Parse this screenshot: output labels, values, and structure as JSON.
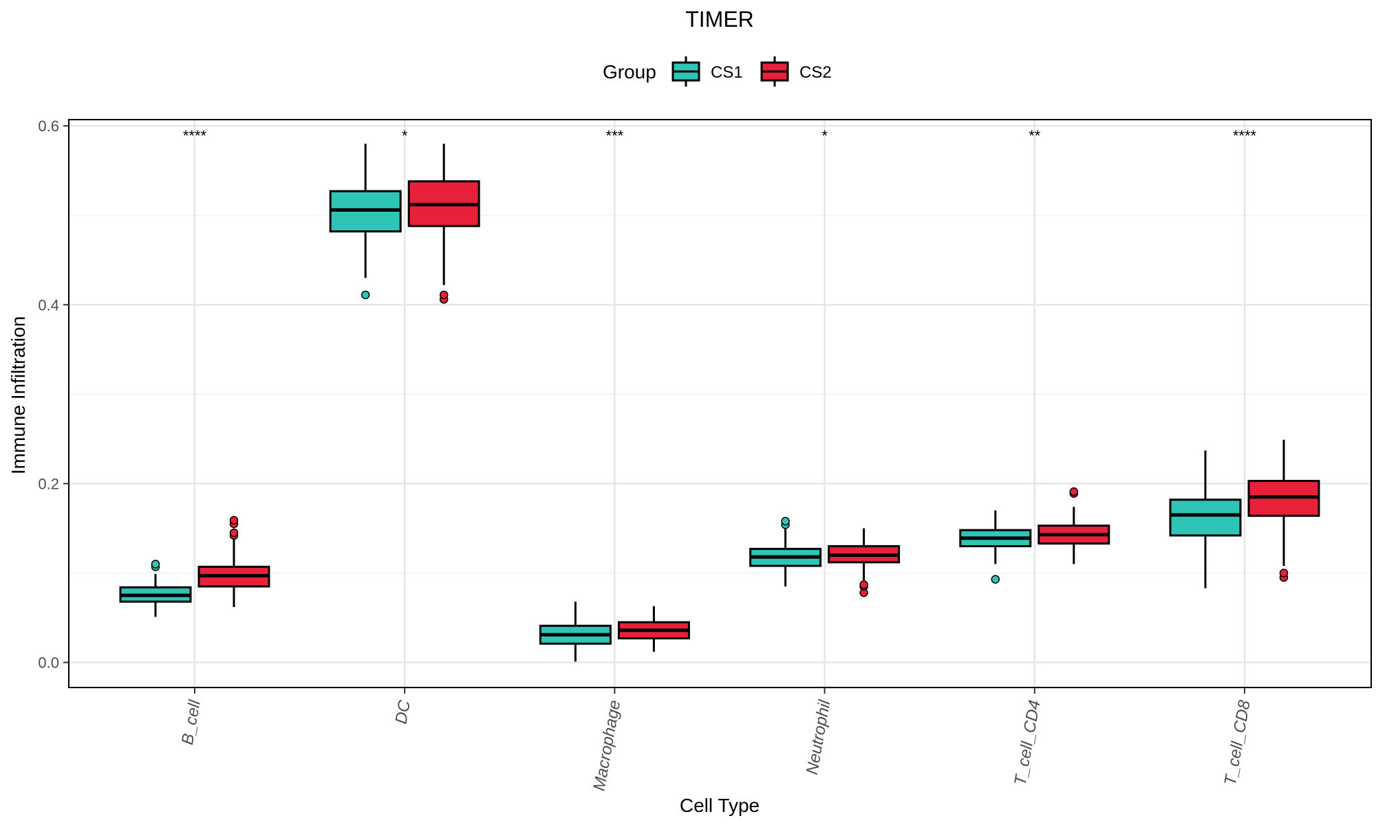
{
  "chart_data": {
    "type": "box",
    "title": "TIMER",
    "xlabel": "Cell Type",
    "ylabel": "Immune Infiltration",
    "ylim": [
      -0.028,
      0.607
    ],
    "yticks": [
      "0.0",
      "0.2",
      "0.4",
      "0.6"
    ],
    "ytick_values": [
      0.0,
      0.2,
      0.4,
      0.6
    ],
    "grid": true,
    "legend": {
      "title": "Group",
      "position": "top"
    },
    "categories": [
      "B_cell",
      "DC",
      "Macrophage",
      "Neutrophil",
      "T_cell_CD4",
      "T_cell_CD8"
    ],
    "significance": [
      "****",
      "*",
      "***",
      "*",
      "**",
      "****"
    ],
    "series": [
      {
        "name": "CS1",
        "color": "#2EC4B6",
        "boxes": [
          {
            "whisker_low": 0.051,
            "q1": 0.068,
            "median": 0.075,
            "q3": 0.084,
            "whisker_high": 0.099,
            "outliers": [
              0.107,
              0.11
            ]
          },
          {
            "whisker_low": 0.43,
            "q1": 0.482,
            "median": 0.506,
            "q3": 0.527,
            "whisker_high": 0.58,
            "outliers": [
              0.411
            ]
          },
          {
            "whisker_low": 0.001,
            "q1": 0.021,
            "median": 0.031,
            "q3": 0.041,
            "whisker_high": 0.068,
            "outliers": []
          },
          {
            "whisker_low": 0.085,
            "q1": 0.108,
            "median": 0.118,
            "q3": 0.127,
            "whisker_high": 0.15,
            "outliers": [
              0.154,
              0.158
            ]
          },
          {
            "whisker_low": 0.11,
            "q1": 0.13,
            "median": 0.139,
            "q3": 0.148,
            "whisker_high": 0.17,
            "outliers": [
              0.093
            ]
          },
          {
            "whisker_low": 0.083,
            "q1": 0.142,
            "median": 0.165,
            "q3": 0.182,
            "whisker_high": 0.237,
            "outliers": []
          }
        ]
      },
      {
        "name": "CS2",
        "color": "#E8213A",
        "boxes": [
          {
            "whisker_low": 0.062,
            "q1": 0.085,
            "median": 0.097,
            "q3": 0.107,
            "whisker_high": 0.138,
            "outliers": [
              0.142,
              0.145,
              0.155,
              0.159
            ]
          },
          {
            "whisker_low": 0.422,
            "q1": 0.488,
            "median": 0.512,
            "q3": 0.538,
            "whisker_high": 0.58,
            "outliers": [
              0.406,
              0.411
            ]
          },
          {
            "whisker_low": 0.012,
            "q1": 0.027,
            "median": 0.036,
            "q3": 0.045,
            "whisker_high": 0.063,
            "outliers": []
          },
          {
            "whisker_low": 0.092,
            "q1": 0.112,
            "median": 0.12,
            "q3": 0.13,
            "whisker_high": 0.15,
            "outliers": [
              0.078,
              0.085,
              0.087
            ]
          },
          {
            "whisker_low": 0.11,
            "q1": 0.133,
            "median": 0.143,
            "q3": 0.153,
            "whisker_high": 0.174,
            "outliers": [
              0.189,
              0.191
            ]
          },
          {
            "whisker_low": 0.108,
            "q1": 0.164,
            "median": 0.185,
            "q3": 0.203,
            "whisker_high": 0.249,
            "outliers": [
              0.095,
              0.1
            ]
          }
        ]
      }
    ]
  }
}
